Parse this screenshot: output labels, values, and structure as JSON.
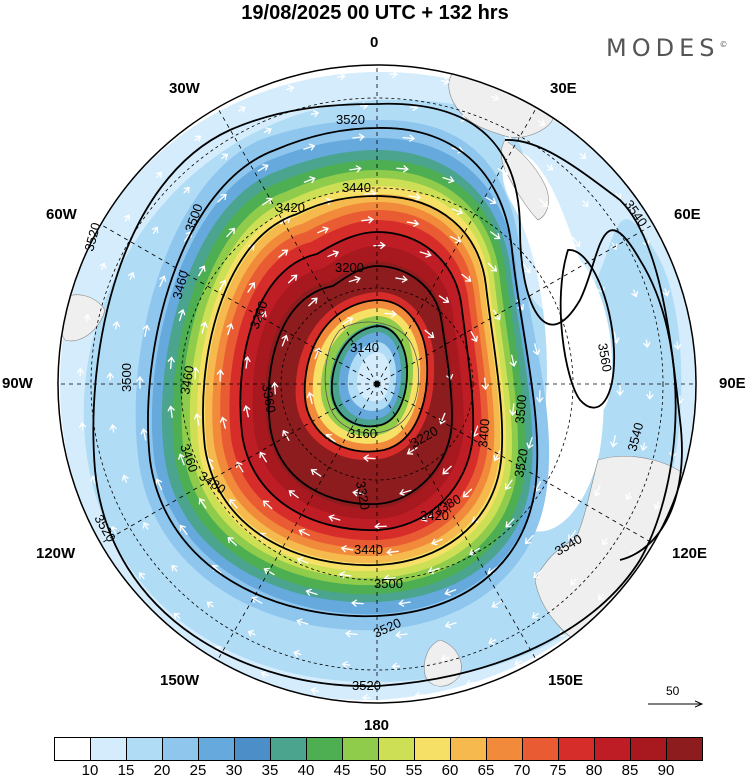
{
  "title": "19/08/2025  00 UTC  + 132 hrs",
  "brand": "MODES",
  "brand_mark": "©",
  "longitude_labels": {
    "top": "0",
    "r30e": "30E",
    "r60e": "60E",
    "r90e": "90E",
    "r120e": "120E",
    "r150e": "150E",
    "bottom": "180",
    "l30w": "30W",
    "l60w": "60W",
    "l90w": "90W",
    "l120w": "120W",
    "l150w": "150W"
  },
  "contour_labels": [
    "3520",
    "3520",
    "3500",
    "3540",
    "3560",
    "3540",
    "3540",
    "3520",
    "3520",
    "3520",
    "3500",
    "3460",
    "3440",
    "3420",
    "3400",
    "3380",
    "3360",
    "3320",
    "3260",
    "3200",
    "3140",
    "3160",
    "3220",
    "3420",
    "3480",
    "3460",
    "3460",
    "3500",
    "3440",
    "3500",
    "3520"
  ],
  "vector_reference": "50",
  "colorbar": {
    "colors": [
      "#ffffff",
      "#d4ecfb",
      "#b1dcf6",
      "#8ec6ee",
      "#66a9dd",
      "#4c8fc8",
      "#4aa48e",
      "#4dae52",
      "#8fcc4b",
      "#cde055",
      "#f6e066",
      "#f6b94e",
      "#f18a3a",
      "#e95b33",
      "#d62d2b",
      "#bf1d25",
      "#a8181f",
      "#8c1c1d"
    ],
    "ticks": [
      "10",
      "15",
      "20",
      "25",
      "30",
      "35",
      "40",
      "45",
      "50",
      "55",
      "60",
      "65",
      "70",
      "75",
      "80",
      "85",
      "90"
    ]
  }
}
